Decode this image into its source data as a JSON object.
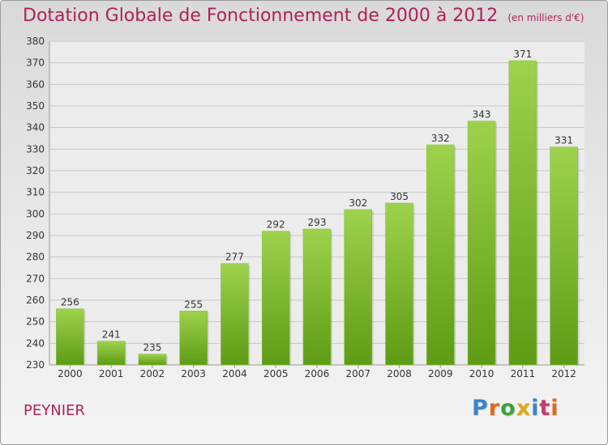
{
  "header": {
    "title": "Dotation Globale de Fonctionnement de 2000 à 2012",
    "unit": "(en milliers d'€)"
  },
  "footer": {
    "commune": "PEYNIER",
    "logo_text": "Proxiti"
  },
  "colors": {
    "title": "#b0205a",
    "bar_top": "#9ed24c",
    "bar_bottom": "#5e9b14",
    "grid": "#c8c8c8"
  },
  "chart_data": {
    "type": "bar",
    "categories": [
      "2000",
      "2001",
      "2002",
      "2003",
      "2004",
      "2005",
      "2006",
      "2007",
      "2008",
      "2009",
      "2010",
      "2011",
      "2012"
    ],
    "values": [
      256,
      241,
      235,
      255,
      277,
      292,
      293,
      302,
      305,
      332,
      343,
      371,
      331
    ],
    "ylim": [
      230,
      380
    ],
    "yticks": [
      230,
      240,
      250,
      260,
      270,
      280,
      290,
      300,
      310,
      320,
      330,
      340,
      350,
      360,
      370,
      380
    ],
    "grid": true,
    "data_labels": true
  }
}
